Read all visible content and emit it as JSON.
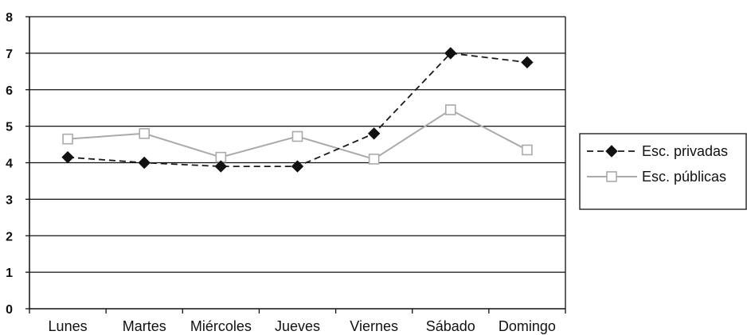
{
  "chart_data": {
    "type": "line",
    "categories": [
      "Lunes",
      "Martes",
      "Miércoles",
      "Jueves",
      "Viernes",
      "Sábado",
      "Domingo"
    ],
    "ylim": [
      0,
      8
    ],
    "yticks": [
      "0",
      "1",
      "2",
      "3",
      "4",
      "5",
      "6",
      "7",
      "8"
    ],
    "grid": "horizontal",
    "legend_position": "right",
    "series": [
      {
        "name": "Esc. privadas",
        "values": [
          4.15,
          4.0,
          3.9,
          3.9,
          4.8,
          7.0,
          6.75
        ],
        "color": "#1a1a1a",
        "line_style": "dashed",
        "marker": "filled-diamond"
      },
      {
        "name": "Esc. públicas",
        "values": [
          4.65,
          4.8,
          4.15,
          4.72,
          4.1,
          5.45,
          4.35
        ],
        "color": "#aaaaaa",
        "line_style": "solid",
        "marker": "open-square"
      }
    ]
  }
}
